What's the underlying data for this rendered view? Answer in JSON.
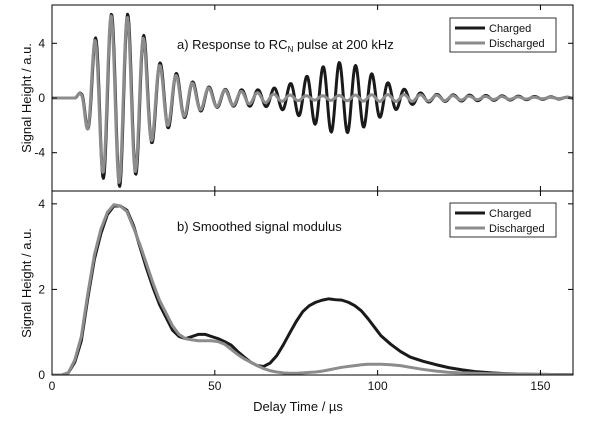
{
  "x_axis_label": "Delay Time / µs",
  "y_axis_label": "Signal Height / a.u.",
  "chart_data": [
    {
      "type": "line",
      "title_main": "a) Response to RC",
      "title_sub": "N",
      "title_rest": " pulse at 200 kHz",
      "xlim": [
        0,
        160
      ],
      "ylim": [
        -6.8,
        6.8
      ],
      "y_ticks": [
        -4,
        0,
        4
      ],
      "y_tick_labels": [
        "-4",
        "0",
        "4"
      ],
      "legend_position": "top-right",
      "series": [
        {
          "name": "Charged",
          "color": "#1a1a1a",
          "waveform": {
            "freq": 0.2,
            "phase": 0,
            "start": 7,
            "envelope": [
              [
                7,
                0
              ],
              [
                9,
                0.5
              ],
              [
                12,
                3.3
              ],
              [
                15,
                5.8
              ],
              [
                18,
                6.1
              ],
              [
                21,
                6.5
              ],
              [
                24,
                6.0
              ],
              [
                27,
                5.3
              ],
              [
                30,
                3.5
              ],
              [
                33,
                2.6
              ],
              [
                37,
                2.0
              ],
              [
                40,
                1.5
              ],
              [
                45,
                1.0
              ],
              [
                50,
                0.7
              ],
              [
                55,
                0.6
              ],
              [
                60,
                0.6
              ],
              [
                65,
                0.6
              ],
              [
                70,
                0.8
              ],
              [
                75,
                1.2
              ],
              [
                80,
                1.8
              ],
              [
                84,
                2.4
              ],
              [
                88,
                2.6
              ],
              [
                92,
                2.5
              ],
              [
                96,
                2.1
              ],
              [
                100,
                1.5
              ],
              [
                105,
                0.9
              ],
              [
                110,
                0.5
              ],
              [
                115,
                0.3
              ],
              [
                120,
                0.25
              ],
              [
                130,
                0.2
              ],
              [
                140,
                0.15
              ],
              [
                150,
                0.1
              ],
              [
                160,
                0.05
              ]
            ]
          }
        },
        {
          "name": "Discharged",
          "color": "#8c8c8c",
          "waveform": {
            "freq": 0.2,
            "phase": 0.15,
            "start": 7,
            "envelope": [
              [
                7,
                0
              ],
              [
                9,
                0.5
              ],
              [
                12,
                3.5
              ],
              [
                15,
                5.3
              ],
              [
                18,
                6.0
              ],
              [
                21,
                6.2
              ],
              [
                24,
                5.8
              ],
              [
                27,
                5.0
              ],
              [
                30,
                3.3
              ],
              [
                33,
                2.4
              ],
              [
                37,
                1.8
              ],
              [
                40,
                1.4
              ],
              [
                45,
                0.9
              ],
              [
                50,
                0.65
              ],
              [
                55,
                0.55
              ],
              [
                60,
                0.45
              ],
              [
                65,
                0.35
              ],
              [
                70,
                0.25
              ],
              [
                80,
                0.15
              ],
              [
                90,
                0.2
              ],
              [
                100,
                0.25
              ],
              [
                110,
                0.25
              ],
              [
                120,
                0.2
              ],
              [
                130,
                0.12
              ],
              [
                140,
                0.1
              ],
              [
                150,
                0.05
              ],
              [
                160,
                0.03
              ]
            ]
          }
        }
      ]
    },
    {
      "type": "line",
      "title": "b) Smoothed signal modulus",
      "xlim": [
        0,
        160
      ],
      "ylim": [
        0,
        4.3
      ],
      "y_ticks": [
        0,
        2,
        4
      ],
      "y_tick_labels": [
        "0",
        "2",
        "4"
      ],
      "x_ticks": [
        0,
        50,
        100,
        150
      ],
      "x_tick_labels": [
        "0",
        "50",
        "100",
        "150"
      ],
      "legend_position": "top-right",
      "series": [
        {
          "name": "Charged",
          "color": "#1a1a1a",
          "x": [
            0,
            3,
            5,
            7,
            9,
            11,
            13,
            15,
            17,
            19,
            21,
            23,
            25,
            27,
            29,
            31,
            33,
            35,
            37,
            39,
            41,
            43,
            45,
            47,
            49,
            51,
            53,
            55,
            57,
            59,
            61,
            63,
            65,
            67,
            69,
            71,
            73,
            75,
            77,
            79,
            81,
            83,
            85,
            87,
            89,
            91,
            93,
            95,
            97,
            99,
            101,
            104,
            107,
            110,
            114,
            118,
            122,
            126,
            130,
            135,
            140,
            145,
            150,
            155,
            160
          ],
          "y": [
            0,
            0,
            0.05,
            0.3,
            0.8,
            1.8,
            2.7,
            3.3,
            3.75,
            3.95,
            3.95,
            3.85,
            3.5,
            3.0,
            2.5,
            2.05,
            1.65,
            1.35,
            1.05,
            0.9,
            0.85,
            0.9,
            0.95,
            0.95,
            0.9,
            0.85,
            0.78,
            0.7,
            0.55,
            0.42,
            0.3,
            0.22,
            0.2,
            0.28,
            0.45,
            0.7,
            0.98,
            1.25,
            1.48,
            1.62,
            1.7,
            1.75,
            1.78,
            1.76,
            1.75,
            1.7,
            1.62,
            1.5,
            1.32,
            1.12,
            0.92,
            0.72,
            0.55,
            0.42,
            0.32,
            0.24,
            0.17,
            0.12,
            0.08,
            0.05,
            0.03,
            0.02,
            0.01,
            0.01,
            0.01
          ]
        },
        {
          "name": "Discharged",
          "color": "#8c8c8c",
          "x": [
            0,
            3,
            5,
            7,
            9,
            11,
            13,
            15,
            17,
            19,
            21,
            23,
            25,
            27,
            29,
            31,
            33,
            35,
            37,
            39,
            41,
            43,
            45,
            47,
            49,
            51,
            53,
            55,
            57,
            59,
            61,
            63,
            65,
            67,
            69,
            71,
            73,
            75,
            77,
            79,
            81,
            83,
            85,
            87,
            89,
            91,
            93,
            95,
            97,
            99,
            101,
            104,
            107,
            110,
            114,
            118,
            122,
            126,
            130,
            135,
            140,
            145,
            150,
            155,
            160
          ],
          "y": [
            0,
            0,
            0.05,
            0.35,
            0.9,
            1.9,
            2.8,
            3.4,
            3.8,
            3.98,
            3.95,
            3.82,
            3.45,
            3.05,
            2.6,
            2.15,
            1.75,
            1.45,
            1.15,
            0.95,
            0.85,
            0.82,
            0.8,
            0.8,
            0.8,
            0.78,
            0.72,
            0.6,
            0.48,
            0.38,
            0.3,
            0.22,
            0.15,
            0.1,
            0.07,
            0.05,
            0.04,
            0.04,
            0.05,
            0.06,
            0.07,
            0.09,
            0.12,
            0.15,
            0.18,
            0.2,
            0.22,
            0.24,
            0.25,
            0.25,
            0.25,
            0.24,
            0.22,
            0.18,
            0.13,
            0.09,
            0.06,
            0.05,
            0.04,
            0.03,
            0.03,
            0.02,
            0.02,
            0.01,
            0.01
          ]
        }
      ]
    }
  ]
}
